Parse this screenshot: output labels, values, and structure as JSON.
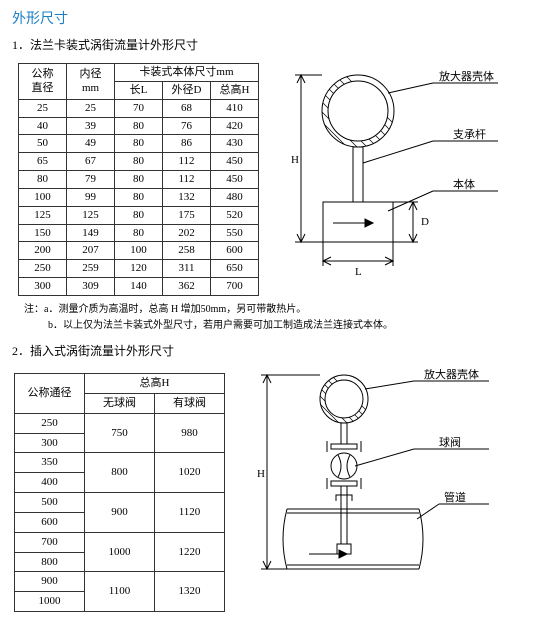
{
  "page_title": "外形尺寸",
  "section1": {
    "title": "1．法兰卡装式涡街流量计外形尺寸",
    "table": {
      "header_group": "卡装式本体尺寸mm",
      "col_labels": {
        "dn": "公称\n直径",
        "id": "内径\nmm",
        "l": "长L",
        "d": "外径D",
        "h": "总高H"
      },
      "rows": [
        {
          "dn": "25",
          "id": "25",
          "l": "70",
          "d": "68",
          "h": "410"
        },
        {
          "dn": "40",
          "id": "39",
          "l": "80",
          "d": "76",
          "h": "420"
        },
        {
          "dn": "50",
          "id": "49",
          "l": "80",
          "d": "86",
          "h": "430"
        },
        {
          "dn": "65",
          "id": "67",
          "l": "80",
          "d": "112",
          "h": "450"
        },
        {
          "dn": "80",
          "id": "79",
          "l": "80",
          "d": "112",
          "h": "450"
        },
        {
          "dn": "100",
          "id": "99",
          "l": "80",
          "d": "132",
          "h": "480"
        },
        {
          "dn": "125",
          "id": "125",
          "l": "80",
          "d": "175",
          "h": "520"
        },
        {
          "dn": "150",
          "id": "149",
          "l": "80",
          "d": "202",
          "h": "550"
        },
        {
          "dn": "200",
          "id": "207",
          "l": "100",
          "d": "258",
          "h": "600"
        },
        {
          "dn": "250",
          "id": "259",
          "l": "120",
          "d": "311",
          "h": "650"
        },
        {
          "dn": "300",
          "id": "309",
          "l": "140",
          "d": "362",
          "h": "700"
        }
      ]
    },
    "notes": {
      "a": "注：a．测量介质为高温时，总高 H 增加50mm，另可带散热片。",
      "b": "b．以上仅为法兰卡装式外型尺寸，若用户需要可加工制造成法兰连接式本体。"
    },
    "diagram_labels": {
      "amp": "放大器壳体",
      "rod": "支承杆",
      "body": "本体",
      "H": "H",
      "L": "L",
      "D": "D"
    }
  },
  "section2": {
    "title": "2．插入式涡街流量计外形尺寸",
    "table": {
      "header_group": "总高H",
      "col_labels": {
        "dn": "公称通径",
        "nv": "无球阀",
        "wv": "有球阀"
      },
      "rows": [
        {
          "dn": [
            "250",
            "300"
          ],
          "nv": "750",
          "wv": "980"
        },
        {
          "dn": [
            "350",
            "400"
          ],
          "nv": "800",
          "wv": "1020"
        },
        {
          "dn": [
            "500",
            "600"
          ],
          "nv": "900",
          "wv": "1120"
        },
        {
          "dn": [
            "700",
            "800"
          ],
          "nv": "1000",
          "wv": "1220"
        },
        {
          "dn": [
            "900",
            "1000"
          ],
          "nv": "1100",
          "wv": "1320"
        }
      ]
    },
    "diagram_labels": {
      "amp": "放大器壳体",
      "valve": "球阀",
      "pipe": "管道",
      "H": "H"
    }
  },
  "colors": {
    "title": "#1a7fc4",
    "border": "#333333",
    "stroke": "#000000",
    "hatch": "#000000"
  }
}
